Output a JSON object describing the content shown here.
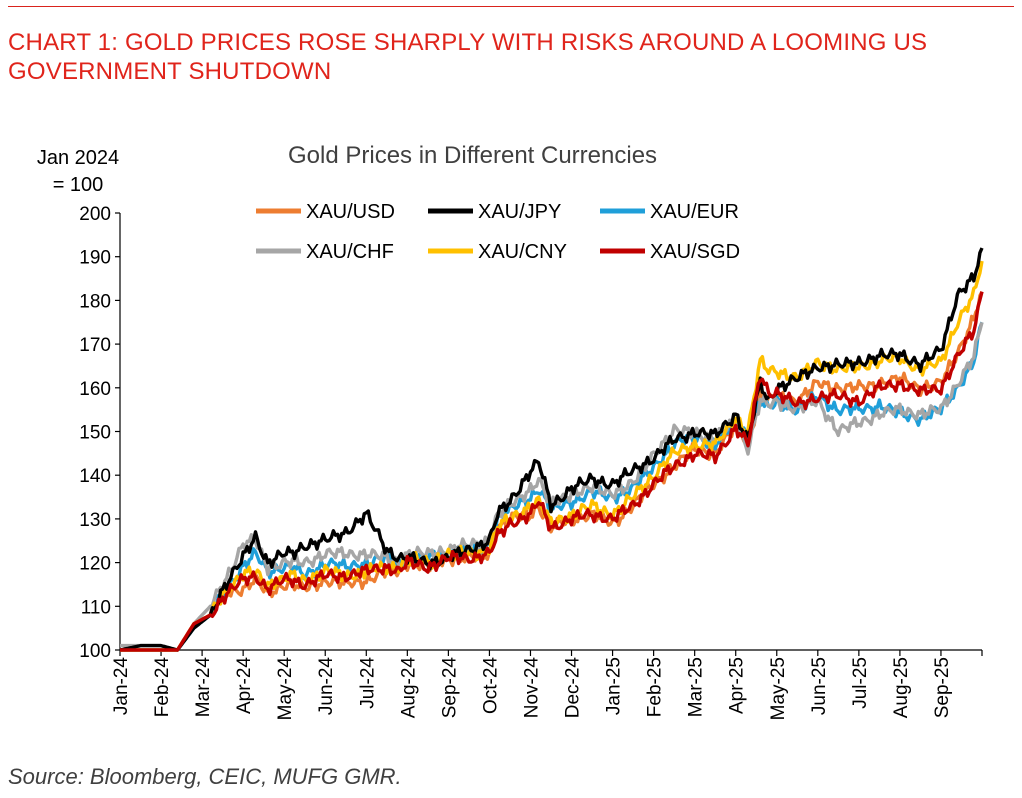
{
  "header": {
    "title": "CHART 1: GOLD PRICES ROSE SHARPLY WITH RISKS AROUND A LOOMING US GOVERNMENT SHUTDOWN"
  },
  "footer": {
    "source": "Source: Bloomberg, CEIC, MUFG GMR."
  },
  "colors": {
    "heading": "#e0241b",
    "XAU/USD": "#ed7d31",
    "XAU/JPY": "#000000",
    "XAU/EUR": "#1f9fd9",
    "XAU/CHF": "#a6a6a6",
    "XAU/CNY": "#ffc000",
    "XAU/SGD": "#c00000"
  },
  "chart_data": {
    "type": "line",
    "title": "Gold Prices in Different Currencies",
    "ylabel": "Jan 2024 = 100",
    "ylabel_lines": [
      "Jan 2024",
      "= 100"
    ],
    "xlabel": "",
    "ylim": [
      100,
      200
    ],
    "yticks": [
      100,
      110,
      120,
      130,
      140,
      150,
      160,
      170,
      180,
      190,
      200
    ],
    "categories": [
      "Jan-24",
      "Feb-24",
      "Mar-24",
      "Apr-24",
      "May-24",
      "Jun-24",
      "Jul-24",
      "Aug-24",
      "Sep-24",
      "Oct-24",
      "Nov-24",
      "Dec-24",
      "Jan-25",
      "Feb-25",
      "Mar-25",
      "Apr-25",
      "May-25",
      "Jun-25",
      "Jul-25",
      "Aug-25",
      "Sep-25"
    ],
    "legend_placement": "top-center",
    "grid": false,
    "x": [
      0,
      0.5,
      1,
      1.4,
      1.8,
      2.2,
      2.5,
      3,
      3.3,
      3.6,
      4,
      4.2,
      4.5,
      5,
      5.5,
      6,
      6.5,
      6.8,
      7,
      7.5,
      8,
      8.5,
      9,
      9.2,
      9.5,
      10,
      10.2,
      10.5,
      11,
      11.5,
      12,
      12.5,
      13,
      13.5,
      14,
      14.5,
      15,
      15.3,
      15.6,
      15.8,
      16,
      16.5,
      17,
      17.5,
      18,
      18.5,
      19,
      19.5,
      20,
      20.4,
      20.8,
      21
    ],
    "series": [
      {
        "name": "XAU/USD",
        "values": [
          100,
          100,
          100,
          100,
          106,
          108,
          113,
          114,
          116,
          113,
          115,
          115,
          114,
          116,
          115,
          116,
          118,
          118,
          120,
          119,
          121,
          121,
          122,
          128,
          130,
          131,
          133,
          128,
          130,
          131,
          129,
          133,
          138,
          142,
          146,
          145,
          151,
          148,
          158,
          157,
          158,
          157,
          161,
          160,
          160,
          161,
          162,
          160,
          161,
          168,
          176,
          182
        ]
      },
      {
        "name": "XAU/JPY",
        "values": [
          100,
          101,
          101,
          100,
          105,
          108,
          114,
          121,
          126,
          120,
          122,
          122,
          124,
          125,
          127,
          131,
          123,
          121,
          121,
          120,
          121,
          123,
          125,
          131,
          134,
          141,
          143,
          133,
          137,
          139,
          138,
          141,
          144,
          148,
          150,
          149,
          154,
          148,
          161,
          157,
          160,
          162,
          165,
          165,
          166,
          167,
          168,
          165,
          169,
          181,
          185,
          192
        ]
      },
      {
        "name": "XAU/EUR",
        "values": [
          100,
          100,
          100,
          100,
          105,
          108,
          113,
          119,
          122,
          118,
          119,
          119,
          117,
          120,
          119,
          120,
          121,
          120,
          121,
          121,
          122,
          123,
          124,
          130,
          132,
          135,
          137,
          132,
          134,
          136,
          135,
          137,
          142,
          147,
          149,
          147,
          152,
          149,
          157,
          155,
          157,
          155,
          158,
          155,
          155,
          156,
          154,
          153,
          155,
          160,
          166,
          175
        ]
      },
      {
        "name": "XAU/CHF",
        "values": [
          101,
          101,
          101,
          100,
          106,
          110,
          115,
          124,
          125,
          119,
          120,
          120,
          120,
          122,
          122,
          122,
          121,
          120,
          122,
          122,
          123,
          124,
          125,
          131,
          133,
          137,
          139,
          133,
          136,
          137,
          136,
          138,
          145,
          150,
          150,
          148,
          153,
          146,
          157,
          156,
          157,
          155,
          157,
          150,
          152,
          154,
          155,
          154,
          155,
          161,
          167,
          175
        ]
      },
      {
        "name": "XAU/CNY",
        "values": [
          100,
          100,
          100,
          100,
          106,
          108,
          113,
          117,
          118,
          115,
          116,
          117,
          116,
          118,
          117,
          118,
          119,
          119,
          121,
          120,
          122,
          122,
          123,
          128,
          130,
          133,
          134,
          129,
          131,
          133,
          131,
          135,
          140,
          145,
          147,
          147,
          153,
          150,
          166,
          164,
          164,
          162,
          166,
          164,
          165,
          166,
          167,
          164,
          166,
          175,
          181,
          189
        ]
      },
      {
        "name": "XAU/SGD",
        "values": [
          100,
          100,
          100,
          100,
          106,
          108,
          112,
          116,
          117,
          114,
          116,
          116,
          115,
          117,
          117,
          118,
          119,
          118,
          120,
          119,
          121,
          121,
          122,
          126,
          129,
          131,
          134,
          128,
          130,
          131,
          130,
          133,
          138,
          142,
          145,
          144,
          151,
          147,
          163,
          159,
          159,
          156,
          158,
          158,
          157,
          160,
          161,
          159,
          160,
          167,
          173,
          182
        ]
      }
    ]
  }
}
